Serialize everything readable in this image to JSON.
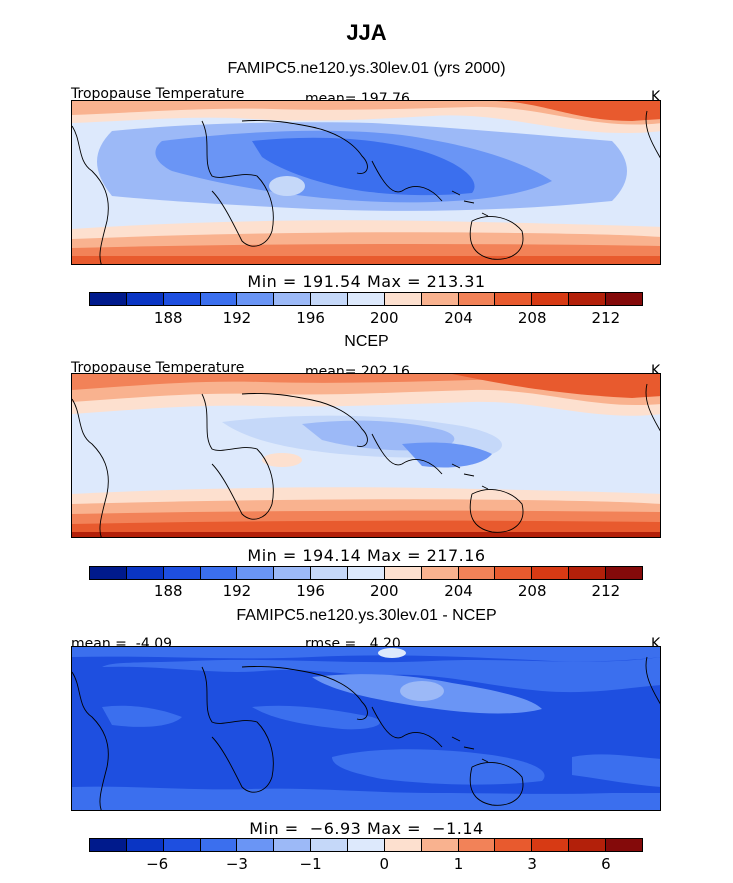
{
  "title": "JJA",
  "palette_abs": [
    "#001a8c",
    "#0a35c4",
    "#1e4fe0",
    "#3b6fee",
    "#6a95f5",
    "#9cb9f7",
    "#c5d8f9",
    "#dde9fc",
    "#fde0cf",
    "#f9b28f",
    "#f28258",
    "#e85a2e",
    "#d73a14",
    "#b3200a",
    "#840a0a"
  ],
  "palette_diff": [
    "#001a8c",
    "#0a35c4",
    "#1e4fe0",
    "#3b6fee",
    "#6a95f5",
    "#9cb9f7",
    "#c5d8f9",
    "#dde9fc",
    "#fde0cf",
    "#f9b28f",
    "#f28258",
    "#e85a2e",
    "#d73a14",
    "#b3200a",
    "#840a0a"
  ],
  "panels": [
    {
      "subtitle": "FAMIPC5.ne120.ys.30lev.01 (yrs 2000)",
      "left_label": "Tropopause Temperature",
      "center_label": "mean= 197.76",
      "units": "K",
      "minmax": "Min = 191.54 Max = 213.31",
      "ticks": [
        "188",
        "192",
        "196",
        "200",
        "204",
        "208",
        "212"
      ],
      "kind": "model"
    },
    {
      "subtitle": "NCEP",
      "left_label": "Tropopause Temperature",
      "center_label": "mean= 202.16",
      "units": "K",
      "minmax": "Min = 194.14 Max = 217.16",
      "ticks": [
        "188",
        "192",
        "196",
        "200",
        "204",
        "208",
        "212"
      ],
      "kind": "obs"
    },
    {
      "subtitle": "FAMIPC5.ne120.ys.30lev.01 - NCEP",
      "left_label": "mean =  -4.09",
      "center_label": "rmse =   4.20",
      "units": "K",
      "minmax": "Min =  −6.93 Max =  −1.14",
      "ticks": [
        "−6",
        "−3",
        "−1",
        "0",
        "1",
        "3",
        "6"
      ],
      "kind": "diff"
    }
  ]
}
